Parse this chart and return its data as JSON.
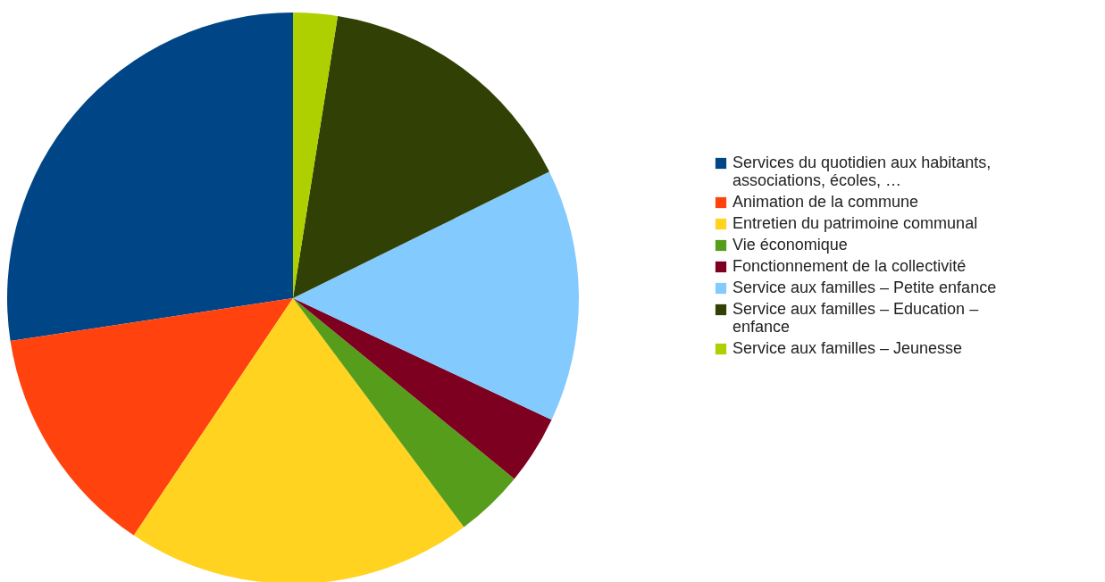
{
  "chart_data": {
    "type": "pie",
    "categories": [
      "Services du quotidien aux habitants, associations, écoles, …",
      "Animation de la commune",
      "Entretien du patrimoine communal",
      "Vie économique",
      "Fonctionnement de la collectivité",
      "Service aux familles – Petite enfance",
      "Service aux familles – Education – enfance",
      "Service aux familles – Jeunesse"
    ],
    "values": [
      27.4,
      13.2,
      19.6,
      3.9,
      3.9,
      14.3,
      15.2,
      2.5
    ],
    "colors": [
      "#004586",
      "#ff420e",
      "#ffd320",
      "#579d1c",
      "#7e0021",
      "#83caff",
      "#314004",
      "#aecf00"
    ],
    "legend": "right"
  }
}
